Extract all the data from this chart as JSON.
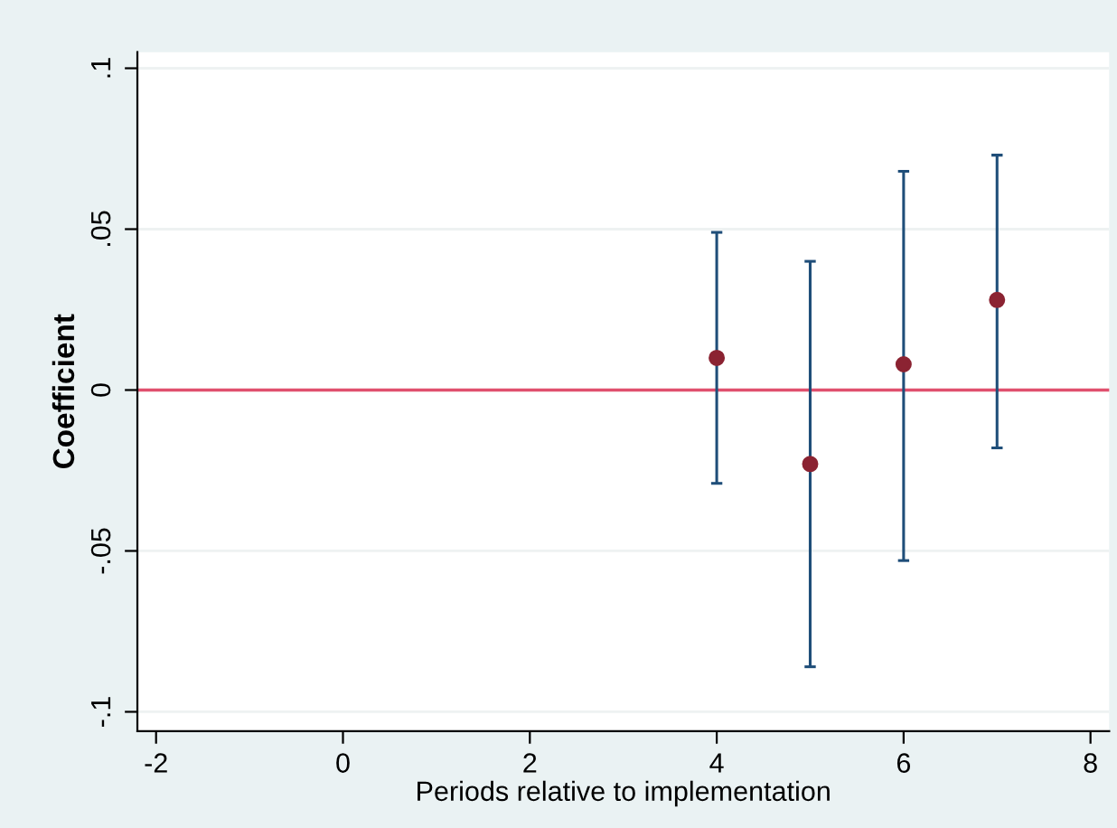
{
  "chart_data": {
    "type": "scatter",
    "xlabel": "Periods relative to implementation",
    "ylabel": "Coefficient",
    "x": [
      4,
      5,
      6,
      7
    ],
    "series": [
      {
        "color": "#8b2332",
        "values": [
          0.01,
          -0.023,
          0.008,
          0.028
        ],
        "errors": [
          [
            -0.029,
            0.049
          ],
          [
            -0.086,
            0.04
          ],
          [
            -0.053,
            0.068
          ],
          [
            -0.018,
            0.073
          ]
        ]
      }
    ],
    "marker": "circle",
    "xlim": [
      -2.2,
      8.2
    ],
    "xticks": [
      -2,
      0,
      2,
      4,
      6,
      8
    ],
    "ylim": [
      -0.106,
      0.105
    ],
    "yticks": [
      {
        "value": -0.1,
        "label": "-.1"
      },
      {
        "value": -0.05,
        "label": "-.05"
      },
      {
        "value": 0,
        "label": "0"
      },
      {
        "value": 0.05,
        "label": ".05"
      },
      {
        "value": 0.1,
        "label": ".1"
      }
    ],
    "grid": "y",
    "ref_lines": [
      {
        "axis": "y",
        "value": 0,
        "color": "#e0506e"
      }
    ]
  }
}
